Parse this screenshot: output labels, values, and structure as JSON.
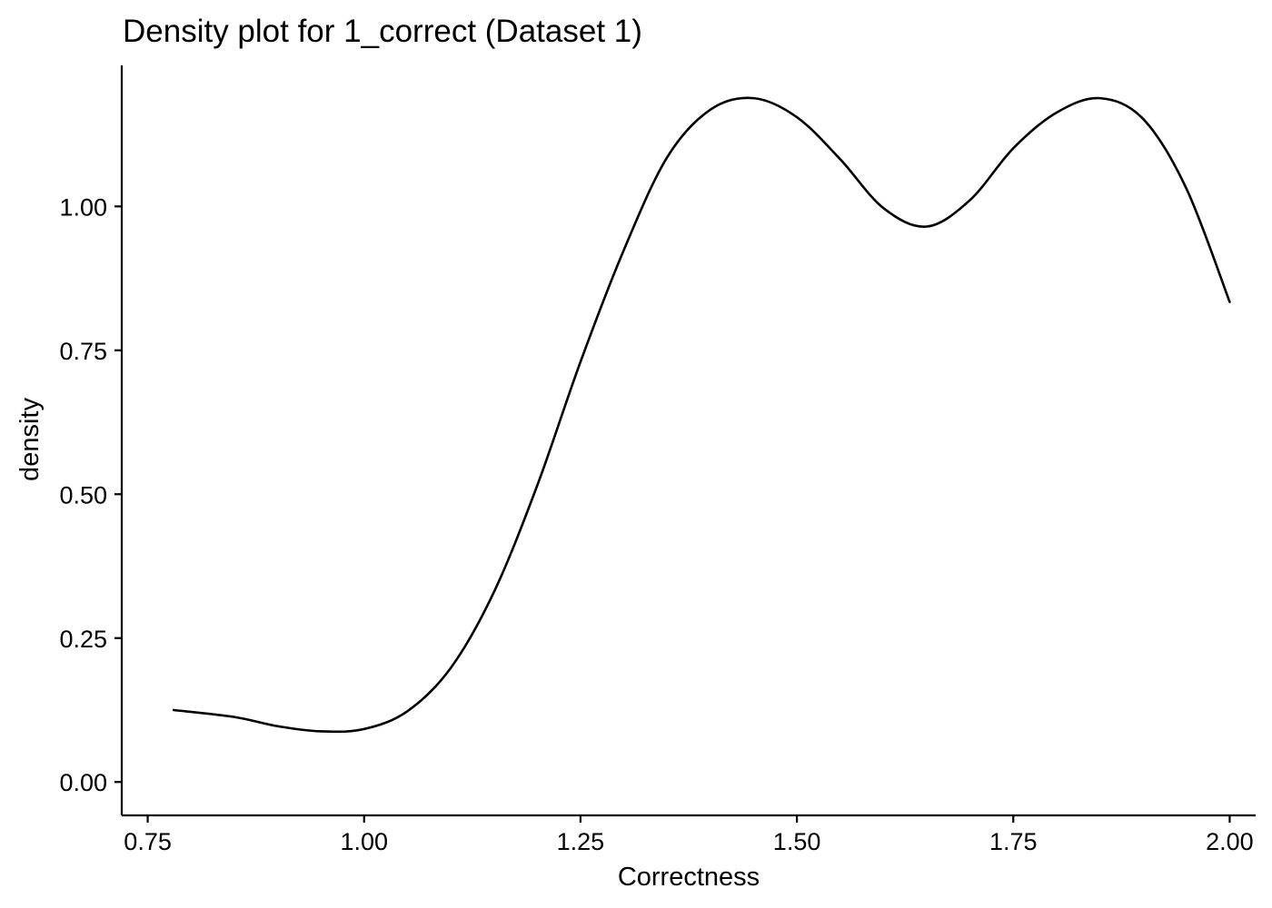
{
  "chart_data": {
    "type": "line",
    "title": "Density plot for 1_correct (Dataset 1)",
    "xlabel": "Correctness",
    "ylabel": "density",
    "xlim": [
      0.72,
      2.03
    ],
    "ylim": [
      -0.058,
      1.245
    ],
    "x_ticks": [
      0.75,
      1.0,
      1.25,
      1.5,
      1.75,
      2.0
    ],
    "x_tick_labels": [
      "0.75",
      "1.00",
      "1.25",
      "1.50",
      "1.75",
      "2.00"
    ],
    "y_ticks": [
      0.0,
      0.25,
      0.5,
      0.75,
      1.0
    ],
    "y_tick_labels": [
      "0.00",
      "0.25",
      "0.50",
      "0.75",
      "1.00"
    ],
    "grid": false,
    "legend": "none",
    "line_color": "#000000",
    "series": [
      {
        "x": [
          0.78,
          0.85,
          0.9,
          0.95,
          1.0,
          1.05,
          1.1,
          1.15,
          1.2,
          1.25,
          1.3,
          1.35,
          1.4,
          1.45,
          1.5,
          1.55,
          1.6,
          1.65,
          1.7,
          1.75,
          1.8,
          1.85,
          1.9,
          1.95,
          2.0
        ],
        "y": [
          0.125,
          0.113,
          0.097,
          0.088,
          0.092,
          0.123,
          0.198,
          0.33,
          0.515,
          0.73,
          0.924,
          1.085,
          1.168,
          1.188,
          1.155,
          1.082,
          0.997,
          0.965,
          1.011,
          1.101,
          1.163,
          1.188,
          1.152,
          1.031,
          0.834
        ]
      }
    ]
  }
}
